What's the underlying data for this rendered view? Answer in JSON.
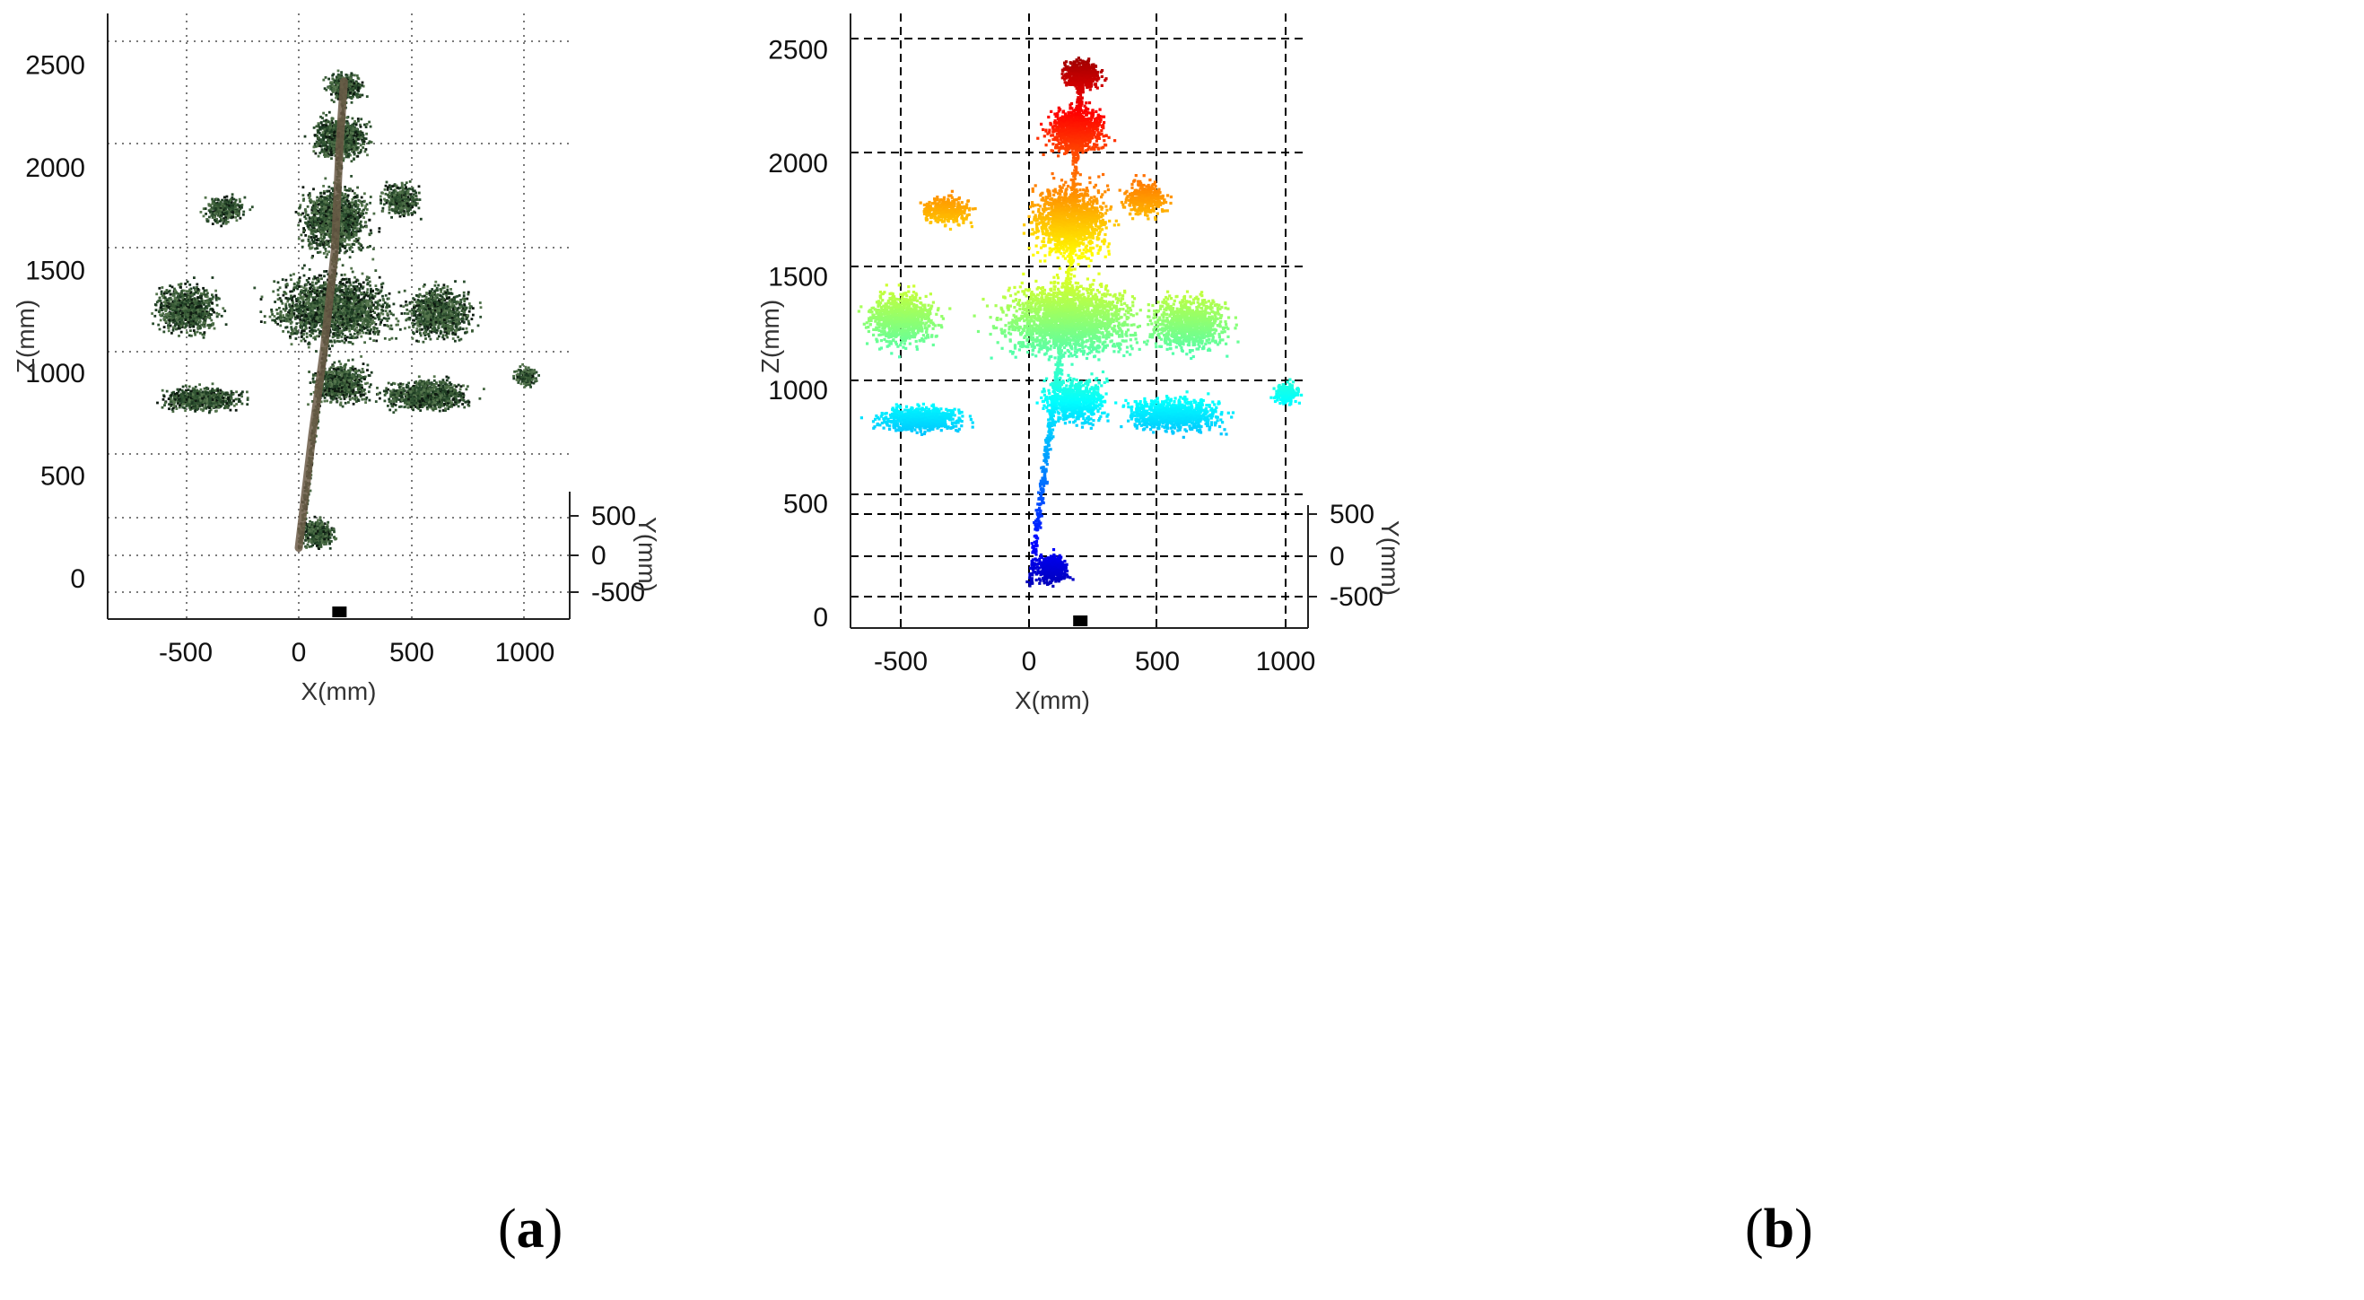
{
  "figure": {
    "panels": [
      {
        "label_open": "(",
        "label_letter": "a",
        "label_close": ")"
      },
      {
        "label_open": "(",
        "label_letter": "b",
        "label_close": ")"
      }
    ]
  },
  "chart_data": [
    {
      "type": "scatter",
      "title": "",
      "xlabel": "X(mm)",
      "ylabel": "Z(mm)",
      "depth_label": "Y(mm)",
      "xlim": [
        -850,
        1200
      ],
      "ylim": [
        -200,
        2650
      ],
      "xticks": [
        -500,
        0,
        500,
        1000
      ],
      "yticks": [
        0,
        500,
        1000,
        1500,
        2000,
        2500
      ],
      "depth_ticks": [
        500,
        0,
        -500
      ],
      "grid": "dotted",
      "grid_color": "#7a7a7a",
      "marker_x": 180,
      "coloring": "rgb",
      "point_colors": [
        "#1d3b22",
        "#2d5030",
        "#385a35",
        "#4a6b45",
        "#0d1a10",
        "#56764e"
      ],
      "trunk_color": "#6b5a47",
      "description_points": "tree point cloud",
      "tree": {
        "trunk": [
          [
            0,
            150
          ],
          [
            60,
            700
          ],
          [
            110,
            1100
          ],
          [
            160,
            1600
          ],
          [
            180,
            2100
          ],
          [
            200,
            2420
          ]
        ],
        "clusters": [
          {
            "cx": 85,
            "cz": 220,
            "rx": 100,
            "rz": 100,
            "n": 450,
            "layer": "pot"
          },
          {
            "cx": -430,
            "cz": 880,
            "rx": 260,
            "rz": 90,
            "n": 750,
            "layer": "low"
          },
          {
            "cx": 560,
            "cz": 900,
            "rx": 300,
            "rz": 120,
            "n": 900,
            "layer": "low"
          },
          {
            "cx": 1000,
            "cz": 990,
            "rx": 80,
            "rz": 80,
            "n": 180,
            "layer": "low"
          },
          {
            "cx": 180,
            "cz": 960,
            "rx": 200,
            "rz": 160,
            "n": 700,
            "layer": "low"
          },
          {
            "cx": -500,
            "cz": 1320,
            "rx": 220,
            "rz": 190,
            "n": 900,
            "layer": "mid"
          },
          {
            "cx": 150,
            "cz": 1320,
            "rx": 420,
            "rz": 260,
            "n": 2000,
            "layer": "mid"
          },
          {
            "cx": 620,
            "cz": 1300,
            "rx": 240,
            "rz": 200,
            "n": 900,
            "layer": "mid"
          },
          {
            "cx": -330,
            "cz": 1800,
            "rx": 150,
            "rz": 100,
            "n": 350,
            "layer": "upper"
          },
          {
            "cx": 160,
            "cz": 1750,
            "rx": 240,
            "rz": 260,
            "n": 1300,
            "layer": "upper"
          },
          {
            "cx": 450,
            "cz": 1850,
            "rx": 140,
            "rz": 130,
            "n": 350,
            "layer": "upper"
          },
          {
            "cx": 180,
            "cz": 2150,
            "rx": 180,
            "rz": 160,
            "n": 900,
            "layer": "top"
          },
          {
            "cx": 200,
            "cz": 2400,
            "rx": 120,
            "rz": 100,
            "n": 450,
            "layer": "top"
          }
        ]
      }
    },
    {
      "type": "scatter",
      "title": "",
      "xlabel": "X(mm)",
      "ylabel": "Z(mm)",
      "depth_label": "Y(mm)",
      "xlim": [
        -700,
        1080
      ],
      "ylim": [
        -60,
        2650
      ],
      "xticks": [
        -500,
        0,
        500,
        1000
      ],
      "yticks": [
        0,
        500,
        1000,
        1500,
        2000,
        2500
      ],
      "depth_ticks": [
        500,
        0,
        -500
      ],
      "grid": "dashed",
      "grid_color": "#000000",
      "marker_x": 200,
      "coloring": "height-jet",
      "colormap_range": [
        0,
        2550
      ],
      "point_colors": [
        "#00008f",
        "#0030ff",
        "#00e0ff",
        "#40ff90",
        "#e0ff00",
        "#ffa000",
        "#ff1000",
        "#c00000"
      ],
      "description_points": "tree point cloud colored by height"
    }
  ]
}
